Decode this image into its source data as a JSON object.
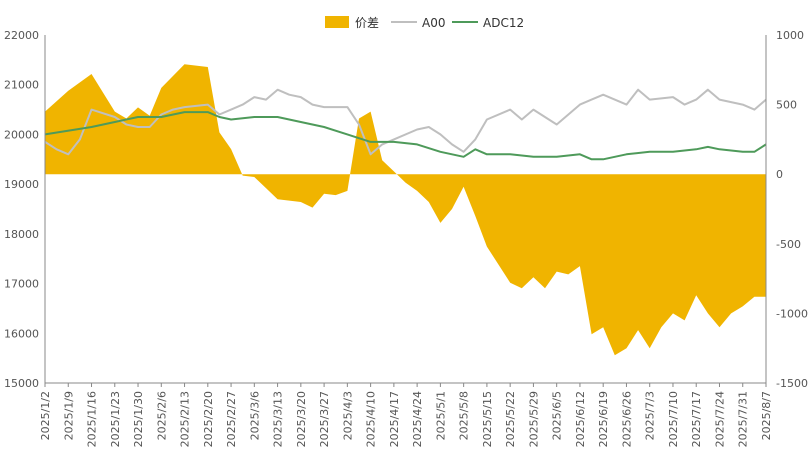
{
  "chart_data": {
    "type": "area+line",
    "title": "",
    "legend": [
      {
        "name": "价差",
        "kind": "area",
        "color": "#F0B400"
      },
      {
        "name": "A00",
        "kind": "line",
        "color": "#BFBFBF"
      },
      {
        "name": "ADC12",
        "kind": "line",
        "color": "#4E9A5A"
      }
    ],
    "left_axis": {
      "min": 15000,
      "max": 22000,
      "ticks": [
        "15000",
        "16000",
        "17000",
        "18000",
        "19000",
        "20000",
        "21000",
        "22000"
      ]
    },
    "right_axis": {
      "min": -1500,
      "max": 1000,
      "ticks": [
        "-1500",
        "-1000",
        "-500",
        "0",
        "500",
        "1000"
      ]
    },
    "x_labels": [
      "2025/1/2",
      "2025/1/9",
      "2025/1/16",
      "2025/1/23",
      "2025/1/30",
      "2025/2/6",
      "2025/2/13",
      "2025/2/20",
      "2025/2/27",
      "2025/3/6",
      "2025/3/13",
      "2025/3/20",
      "2025/3/27",
      "2025/4/3",
      "2025/4/10",
      "2025/4/17",
      "2025/4/24",
      "2025/5/1",
      "2025/5/8",
      "2025/5/15",
      "2025/5/22",
      "2025/5/29",
      "2025/6/5",
      "2025/6/12",
      "2025/6/19",
      "2025/6/26",
      "2025/7/3",
      "2025/7/10",
      "2025/7/17",
      "2025/7/24",
      "2025/7/31",
      "2025/8/7"
    ],
    "series": [
      {
        "name": "价差",
        "axis": "right",
        "points": [
          [
            0,
            450
          ],
          [
            1,
            600
          ],
          [
            2,
            720
          ],
          [
            3,
            450
          ],
          [
            3.5,
            400
          ],
          [
            4,
            480
          ],
          [
            4.5,
            420
          ],
          [
            5,
            620
          ],
          [
            6,
            790
          ],
          [
            7,
            770
          ],
          [
            7.5,
            300
          ],
          [
            8,
            180
          ],
          [
            8.5,
            -10
          ],
          [
            9,
            -20
          ],
          [
            9.5,
            -100
          ],
          [
            10,
            -180
          ],
          [
            11,
            -200
          ],
          [
            11.5,
            -240
          ],
          [
            12,
            -140
          ],
          [
            12.5,
            -150
          ],
          [
            13,
            -120
          ],
          [
            13.5,
            400
          ],
          [
            14,
            450
          ],
          [
            14.5,
            100
          ],
          [
            15,
            20
          ],
          [
            15.5,
            -60
          ],
          [
            16,
            -120
          ],
          [
            16.5,
            -200
          ],
          [
            17,
            -350
          ],
          [
            17.5,
            -250
          ],
          [
            18,
            -90
          ],
          [
            18.5,
            -300
          ],
          [
            19,
            -520
          ],
          [
            20,
            -780
          ],
          [
            20.5,
            -820
          ],
          [
            21,
            -740
          ],
          [
            21.5,
            -820
          ],
          [
            22,
            -700
          ],
          [
            22.5,
            -720
          ],
          [
            23,
            -660
          ],
          [
            23.5,
            -1150
          ],
          [
            24,
            -1100
          ],
          [
            24.5,
            -1300
          ],
          [
            25,
            -1250
          ],
          [
            25.5,
            -1120
          ],
          [
            26,
            -1250
          ],
          [
            26.5,
            -1100
          ],
          [
            27,
            -1000
          ],
          [
            27.5,
            -1050
          ],
          [
            28,
            -870
          ],
          [
            28.5,
            -1000
          ],
          [
            29,
            -1100
          ],
          [
            29.5,
            -1000
          ],
          [
            30,
            -950
          ],
          [
            30.5,
            -880
          ],
          [
            31,
            -880
          ]
        ]
      },
      {
        "name": "A00",
        "axis": "left",
        "points": [
          [
            0,
            19850
          ],
          [
            0.5,
            19700
          ],
          [
            1,
            19600
          ],
          [
            1.5,
            19900
          ],
          [
            2,
            20500
          ],
          [
            3,
            20350
          ],
          [
            3.5,
            20200
          ],
          [
            4,
            20150
          ],
          [
            4.5,
            20150
          ],
          [
            5,
            20400
          ],
          [
            5.5,
            20500
          ],
          [
            6,
            20550
          ],
          [
            7,
            20600
          ],
          [
            7.5,
            20400
          ],
          [
            8,
            20500
          ],
          [
            8.5,
            20600
          ],
          [
            9,
            20750
          ],
          [
            9.5,
            20700
          ],
          [
            10,
            20900
          ],
          [
            10.5,
            20800
          ],
          [
            11,
            20750
          ],
          [
            11.5,
            20600
          ],
          [
            12,
            20550
          ],
          [
            13,
            20550
          ],
          [
            13.5,
            20200
          ],
          [
            14,
            19600
          ],
          [
            14.5,
            19800
          ],
          [
            15,
            19900
          ],
          [
            16,
            20100
          ],
          [
            16.5,
            20150
          ],
          [
            17,
            20000
          ],
          [
            17.5,
            19800
          ],
          [
            18,
            19650
          ],
          [
            18.5,
            19900
          ],
          [
            19,
            20300
          ],
          [
            20,
            20500
          ],
          [
            20.5,
            20300
          ],
          [
            21,
            20500
          ],
          [
            22,
            20200
          ],
          [
            23,
            20600
          ],
          [
            23.5,
            20700
          ],
          [
            24,
            20800
          ],
          [
            25,
            20600
          ],
          [
            25.5,
            20900
          ],
          [
            26,
            20700
          ],
          [
            27,
            20750
          ],
          [
            27.5,
            20600
          ],
          [
            28,
            20700
          ],
          [
            28.5,
            20900
          ],
          [
            29,
            20700
          ],
          [
            30,
            20600
          ],
          [
            30.5,
            20500
          ],
          [
            31,
            20700
          ]
        ]
      },
      {
        "name": "ADC12",
        "axis": "left",
        "points": [
          [
            0,
            20000
          ],
          [
            2,
            20150
          ],
          [
            3,
            20250
          ],
          [
            4,
            20350
          ],
          [
            5,
            20350
          ],
          [
            6,
            20450
          ],
          [
            7,
            20450
          ],
          [
            7.5,
            20350
          ],
          [
            8,
            20300
          ],
          [
            9,
            20350
          ],
          [
            10,
            20350
          ],
          [
            11,
            20250
          ],
          [
            12,
            20150
          ],
          [
            13,
            20000
          ],
          [
            14,
            19850
          ],
          [
            15,
            19850
          ],
          [
            16,
            19800
          ],
          [
            17,
            19650
          ],
          [
            18,
            19550
          ],
          [
            18.5,
            19700
          ],
          [
            19,
            19600
          ],
          [
            20,
            19600
          ],
          [
            21,
            19550
          ],
          [
            22,
            19550
          ],
          [
            23,
            19600
          ],
          [
            23.5,
            19500
          ],
          [
            24,
            19500
          ],
          [
            25,
            19600
          ],
          [
            26,
            19650
          ],
          [
            27,
            19650
          ],
          [
            28,
            19700
          ],
          [
            28.5,
            19750
          ],
          [
            29,
            19700
          ],
          [
            30,
            19650
          ],
          [
            30.5,
            19650
          ],
          [
            31,
            19800
          ]
        ]
      }
    ]
  }
}
